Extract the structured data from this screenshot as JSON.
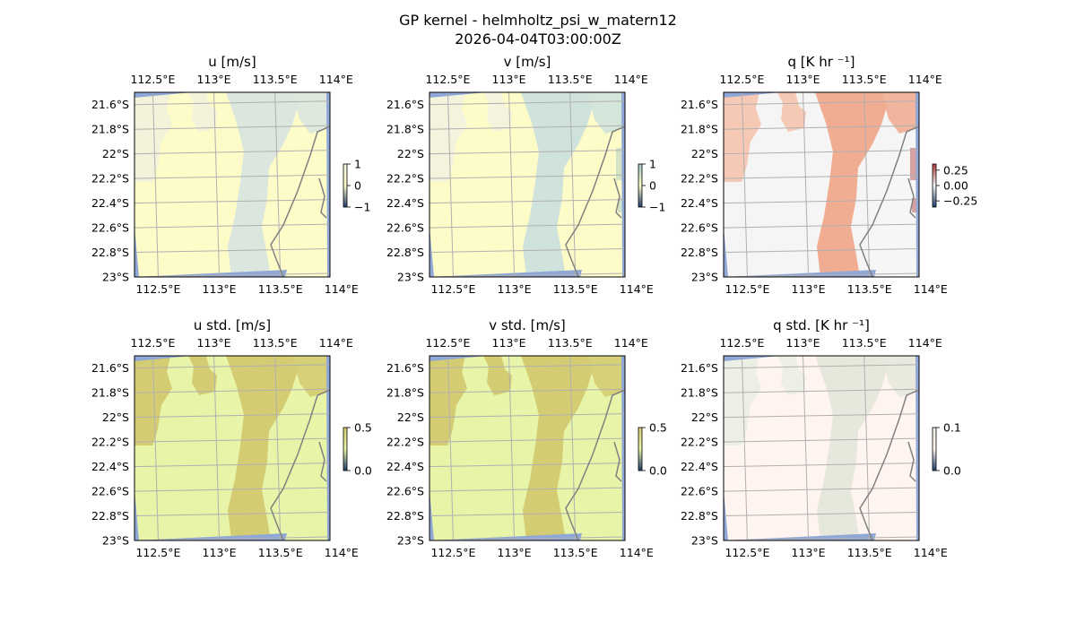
{
  "figure": {
    "title_line1": "GP kernel - helmholtz_psi_w_matern12",
    "title_line2": "2026-04-04T03:00:00Z"
  },
  "axes": {
    "lon_tick_labels": [
      "112.5°E",
      "113°E",
      "113.5°E",
      "114°E"
    ],
    "lat_tick_labels": [
      "21.6°S",
      "21.8°S",
      "22°S",
      "22.2°S",
      "22.4°S",
      "22.6°S",
      "22.8°S",
      "23°S"
    ],
    "lon_values": [
      112.5,
      113.0,
      113.5,
      114.0
    ],
    "lat_values": [
      -21.6,
      -21.8,
      -22.0,
      -22.2,
      -22.4,
      -22.6,
      -22.8,
      -23.0
    ],
    "lon_range": [
      112.35,
      113.95
    ],
    "lat_range": [
      -21.5,
      -23.0
    ],
    "gridlines": true
  },
  "chart_data": [
    {
      "type": "heatmap",
      "title": "u [m/s]",
      "colorbar_ticks": [
        "1",
        "0",
        "−1"
      ],
      "colorbar_range": [
        -1,
        1
      ],
      "colors": {
        "base": "#fdfbc8",
        "patch": "#f3f3dc",
        "plume": "#dbe6df"
      }
    },
    {
      "type": "heatmap",
      "title": "v [m/s]",
      "colorbar_ticks": [
        "1",
        "0",
        "−1"
      ],
      "colorbar_range": [
        -1,
        1
      ],
      "colors": {
        "base": "#fdfbc8",
        "patch": "#f4f3de",
        "plume": "#cfe2dc",
        "accent": "#9fc8c4"
      }
    },
    {
      "type": "heatmap",
      "title": "q [K hr ⁻¹]",
      "colorbar_ticks": [
        "0.25",
        "0.00",
        "−0.25"
      ],
      "colorbar_range": [
        -0.35,
        0.35
      ],
      "colors": {
        "base": "#f5f5f5",
        "patch": "#f6c9b4",
        "plume": "#f1ad92",
        "accent": "#b23a3a"
      }
    },
    {
      "type": "heatmap",
      "title": "u std. [m/s]",
      "colorbar_ticks": [
        "0.5",
        "0.0"
      ],
      "colorbar_range": [
        0,
        0.5
      ],
      "colors": {
        "base": "#e8f4a8",
        "patch": "#d4cc72",
        "plume": "#d4cc72"
      }
    },
    {
      "type": "heatmap",
      "title": "v std. [m/s]",
      "colorbar_ticks": [
        "0.5",
        "0.0"
      ],
      "colorbar_range": [
        0,
        0.5
      ],
      "colors": {
        "base": "#e8f4a8",
        "patch": "#d4cc72",
        "plume": "#d4cc72"
      }
    },
    {
      "type": "heatmap",
      "title": "q std. [K hr ⁻¹]",
      "colorbar_ticks": [
        "0.1",
        "0.0"
      ],
      "colorbar_range": [
        0,
        0.1
      ],
      "colors": {
        "base": "#fff4f0",
        "patch": "#ecf0e4",
        "plume": "#e7e8dc"
      }
    }
  ],
  "colors": {
    "ocean_edge": "#8fa8d8",
    "coastline": "#808080",
    "grid": "#b0b0b0"
  }
}
